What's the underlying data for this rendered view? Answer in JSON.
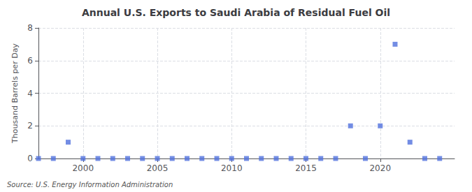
{
  "chart_data": {
    "type": "scatter",
    "title": "Annual U.S. Exports to Saudi Arabia of Residual Fuel Oil",
    "ylabel": "Thousand Barrels per Day",
    "annotation": "Source: U.S. Energy Information Administration",
    "x": [
      1997,
      1998,
      1999,
      2000,
      2001,
      2002,
      2003,
      2004,
      2005,
      2006,
      2007,
      2008,
      2009,
      2010,
      2011,
      2012,
      2013,
      2014,
      2015,
      2016,
      2017,
      2018,
      2019,
      2020,
      2021,
      2022,
      2023,
      2024
    ],
    "values": [
      0,
      0,
      1,
      0,
      0,
      0,
      0,
      0,
      0,
      0,
      0,
      0,
      0,
      0,
      0,
      0,
      0,
      0,
      0,
      0,
      0,
      2,
      0,
      2,
      7,
      1,
      0,
      0
    ],
    "xlim": [
      1997,
      2025
    ],
    "xticks": [
      2000,
      2005,
      2010,
      2015,
      2020
    ],
    "ylim": [
      0,
      8
    ],
    "yticks": [
      0,
      2,
      4,
      6,
      8
    ],
    "marker": "square",
    "grid": true
  }
}
